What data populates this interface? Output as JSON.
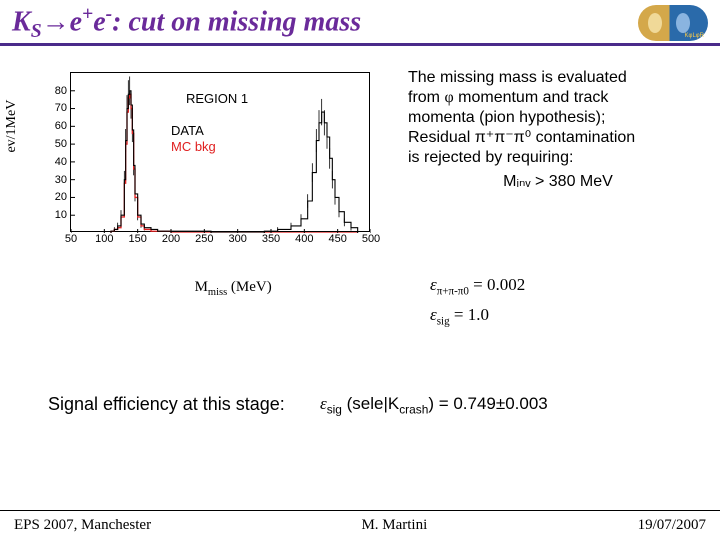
{
  "title": {
    "prefix": "K",
    "sub": "S",
    "arrow": "→",
    "ep": "e",
    "ep_sup": "+",
    "em": "e",
    "em_sup": "-",
    "rest": ": cut on missing mass",
    "color": "#6a2a9a",
    "underline_color": "#4a2a8a"
  },
  "logo": {
    "text": "KφLφR"
  },
  "chart": {
    "type": "histogram",
    "ylabel": "ev/1MeV",
    "xlabel_pre": "M",
    "xlabel_sub": "miss",
    "xlabel_post": " (MeV)",
    "xlim": [
      50,
      500
    ],
    "ylim": [
      0,
      90
    ],
    "xticks": [
      50,
      100,
      150,
      200,
      250,
      300,
      350,
      400,
      450,
      500
    ],
    "yticks": [
      10,
      20,
      30,
      40,
      50,
      60,
      70,
      80
    ],
    "series": {
      "data": {
        "label": "DATA",
        "color": "#000000",
        "bins": [
          [
            110,
            1
          ],
          [
            115,
            2
          ],
          [
            120,
            4
          ],
          [
            125,
            10
          ],
          [
            130,
            30
          ],
          [
            132,
            52
          ],
          [
            134,
            70
          ],
          [
            136,
            78
          ],
          [
            138,
            80
          ],
          [
            140,
            72
          ],
          [
            142,
            58
          ],
          [
            144,
            38
          ],
          [
            146,
            22
          ],
          [
            150,
            10
          ],
          [
            155,
            5
          ],
          [
            160,
            3
          ],
          [
            170,
            2
          ],
          [
            180,
            1
          ],
          [
            200,
            1
          ],
          [
            220,
            1
          ],
          [
            260,
            0
          ],
          [
            300,
            0
          ],
          [
            340,
            1
          ],
          [
            360,
            2
          ],
          [
            380,
            4
          ],
          [
            395,
            8
          ],
          [
            405,
            18
          ],
          [
            412,
            34
          ],
          [
            418,
            52
          ],
          [
            422,
            62
          ],
          [
            426,
            68
          ],
          [
            430,
            62
          ],
          [
            434,
            54
          ],
          [
            438,
            42
          ],
          [
            442,
            30
          ],
          [
            446,
            20
          ],
          [
            452,
            12
          ],
          [
            460,
            6
          ],
          [
            470,
            3
          ],
          [
            480,
            1
          ]
        ]
      },
      "mcbkg": {
        "label": "MC bkg",
        "color": "#e02020",
        "bins": [
          [
            110,
            1
          ],
          [
            115,
            2
          ],
          [
            120,
            3
          ],
          [
            125,
            9
          ],
          [
            130,
            28
          ],
          [
            132,
            50
          ],
          [
            134,
            68
          ],
          [
            136,
            76
          ],
          [
            138,
            78
          ],
          [
            140,
            70
          ],
          [
            142,
            56
          ],
          [
            144,
            36
          ],
          [
            146,
            20
          ],
          [
            150,
            9
          ],
          [
            155,
            4
          ],
          [
            160,
            2
          ],
          [
            170,
            1
          ],
          [
            180,
            1
          ],
          [
            200,
            0
          ],
          [
            260,
            0
          ],
          [
            340,
            0
          ],
          [
            380,
            0
          ],
          [
            400,
            0
          ],
          [
            420,
            0
          ],
          [
            440,
            0
          ],
          [
            460,
            0
          ],
          [
            480,
            0
          ]
        ]
      }
    },
    "region_label": "REGION 1"
  },
  "description": {
    "line1": "The missing mass is evaluated",
    "line2a": "from ",
    "phi": "φ",
    "line2b": " momentum and track",
    "line3": "momenta (pion hypothesis);",
    "line4a": "Residual ",
    "pions": "π⁺π⁻π⁰",
    "line4b": " contamination",
    "line5": "is rejected by requiring:",
    "minv": "Mᵢₙᵥ > 380 MeV"
  },
  "efficiencies": {
    "bkg_label": "ε",
    "bkg_sub": "π+π-π0",
    "bkg_val": " = 0.002",
    "sig_label": "ε",
    "sig_sub": "sig",
    "sig_val": " = 1.0"
  },
  "stage": {
    "label": "Signal efficiency at this stage:",
    "eps": "ε",
    "sub": "sig",
    "paren": " (sele|K",
    "sub2": "crash",
    "val": ") = 0.749±0.003"
  },
  "footer": {
    "left": "EPS 2007, Manchester",
    "center": "M. Martini",
    "right": "19/07/2007"
  }
}
